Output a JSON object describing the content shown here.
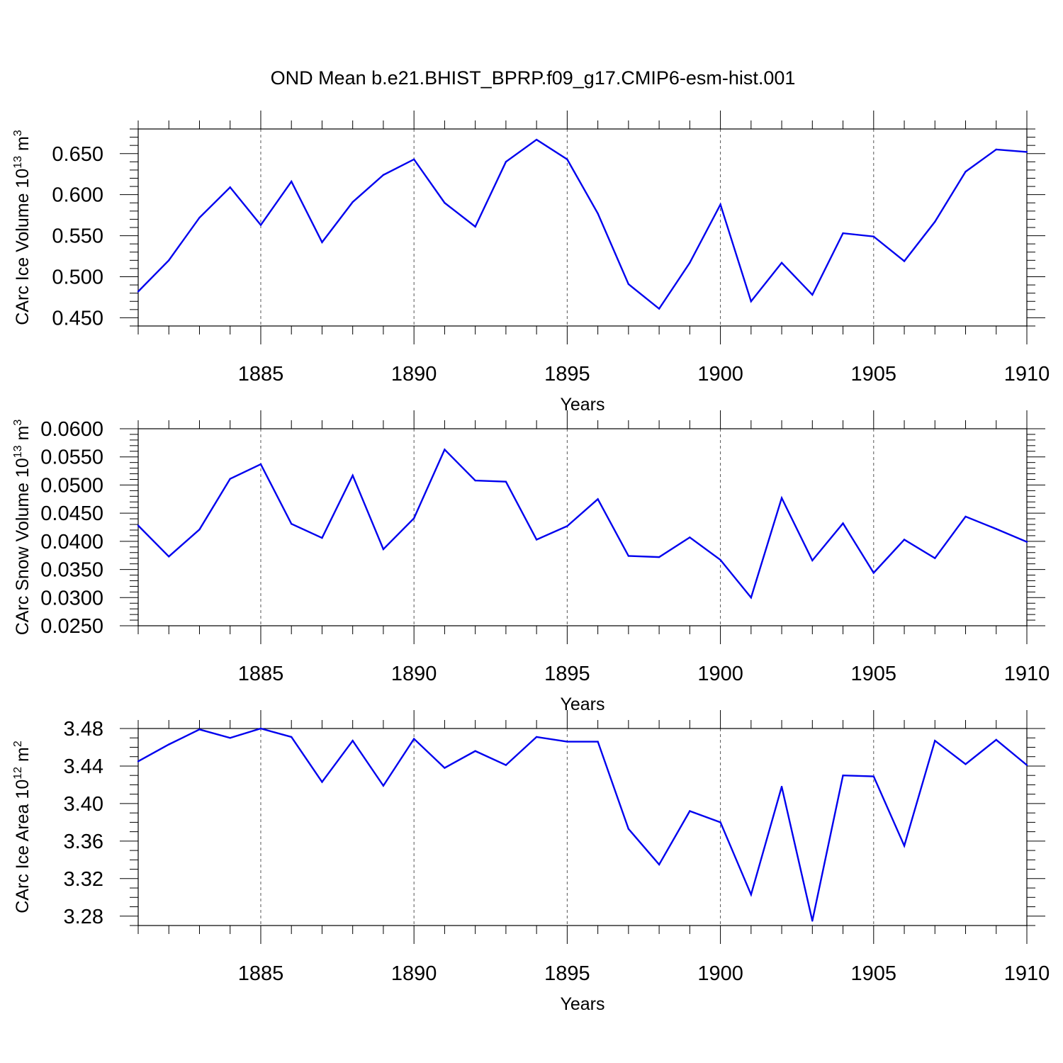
{
  "title": "OND Mean b.e21.BHIST_BPRP.f09_g17.CMIP6-esm-hist.001",
  "line_color": "#0000ee",
  "chart_data": [
    {
      "type": "line",
      "id": "ice-volume",
      "ylabel": "CArc Ice Volume 10",
      "ylabel_exp": "13",
      "ylabel_unit": " m",
      "ylabel_unit_exp": "3",
      "xlabel": "Years",
      "xlim": [
        1881,
        1910
      ],
      "ylim": [
        0.44,
        0.68
      ],
      "x_ticks": [
        1885,
        1890,
        1895,
        1900,
        1905,
        1910
      ],
      "y_ticks": [
        0.45,
        0.5,
        0.55,
        0.6,
        0.65
      ],
      "y_tick_labels": [
        "0.450",
        "0.500",
        "0.550",
        "0.600",
        "0.650"
      ],
      "y_minor_step": 0.01,
      "x": [
        1881,
        1882,
        1883,
        1884,
        1885,
        1886,
        1887,
        1888,
        1889,
        1890,
        1891,
        1892,
        1893,
        1894,
        1895,
        1896,
        1897,
        1898,
        1899,
        1900,
        1901,
        1902,
        1903,
        1904,
        1905,
        1906,
        1907,
        1908,
        1909,
        1910
      ],
      "y": [
        0.482,
        0.52,
        0.572,
        0.609,
        0.563,
        0.616,
        0.542,
        0.591,
        0.624,
        0.643,
        0.59,
        0.561,
        0.64,
        0.667,
        0.643,
        0.577,
        0.491,
        0.461,
        0.517,
        0.588,
        0.47,
        0.517,
        0.478,
        0.553,
        0.549,
        0.519,
        0.567,
        0.628,
        0.655,
        0.652
      ]
    },
    {
      "type": "line",
      "id": "snow-volume",
      "ylabel": "CArc Snow Volume 10",
      "ylabel_exp": "13",
      "ylabel_unit": " m",
      "ylabel_unit_exp": "3",
      "xlabel": "Years",
      "xlim": [
        1881,
        1910
      ],
      "ylim": [
        0.025,
        0.06
      ],
      "x_ticks": [
        1885,
        1890,
        1895,
        1900,
        1905,
        1910
      ],
      "y_ticks": [
        0.025,
        0.03,
        0.035,
        0.04,
        0.045,
        0.05,
        0.055,
        0.06
      ],
      "y_tick_labels": [
        "0.0250",
        "0.0300",
        "0.0350",
        "0.0400",
        "0.0450",
        "0.0500",
        "0.0550",
        "0.0600"
      ],
      "y_minor_step": 0.001,
      "x": [
        1881,
        1882,
        1883,
        1884,
        1885,
        1886,
        1887,
        1888,
        1889,
        1890,
        1891,
        1892,
        1893,
        1894,
        1895,
        1896,
        1897,
        1898,
        1899,
        1900,
        1901,
        1902,
        1903,
        1904,
        1905,
        1906,
        1907,
        1908,
        1909,
        1910
      ],
      "y": [
        0.0428,
        0.0373,
        0.0421,
        0.0511,
        0.0537,
        0.0431,
        0.0406,
        0.0517,
        0.0386,
        0.0441,
        0.0563,
        0.0508,
        0.0506,
        0.0403,
        0.0427,
        0.0475,
        0.0374,
        0.0372,
        0.0407,
        0.0367,
        0.03,
        0.0477,
        0.0366,
        0.0432,
        0.0344,
        0.0403,
        0.037,
        0.0444,
        0.0422,
        0.0399
      ]
    },
    {
      "type": "line",
      "id": "ice-area",
      "ylabel": "CArc Ice Area 10",
      "ylabel_exp": "12",
      "ylabel_unit": " m",
      "ylabel_unit_exp": "2",
      "xlabel": "Years",
      "xlim": [
        1881,
        1910
      ],
      "ylim": [
        3.27,
        3.48
      ],
      "x_ticks": [
        1885,
        1890,
        1895,
        1900,
        1905,
        1910
      ],
      "y_ticks": [
        3.28,
        3.32,
        3.36,
        3.4,
        3.44,
        3.48
      ],
      "y_tick_labels": [
        "3.28",
        "3.32",
        "3.36",
        "3.40",
        "3.44",
        "3.48"
      ],
      "y_minor_step": 0.01,
      "x": [
        1881,
        1882,
        1883,
        1884,
        1885,
        1886,
        1887,
        1888,
        1889,
        1890,
        1891,
        1892,
        1893,
        1894,
        1895,
        1896,
        1897,
        1898,
        1899,
        1900,
        1901,
        1902,
        1903,
        1904,
        1905,
        1906,
        1907,
        1908,
        1909,
        1910
      ],
      "y": [
        3.445,
        3.463,
        3.479,
        3.47,
        3.48,
        3.471,
        3.423,
        3.467,
        3.419,
        3.469,
        3.438,
        3.456,
        3.441,
        3.471,
        3.466,
        3.466,
        3.373,
        3.335,
        3.392,
        3.38,
        3.303,
        3.418,
        3.275,
        3.43,
        3.429,
        3.355,
        3.467,
        3.442,
        3.468,
        3.441
      ]
    }
  ]
}
